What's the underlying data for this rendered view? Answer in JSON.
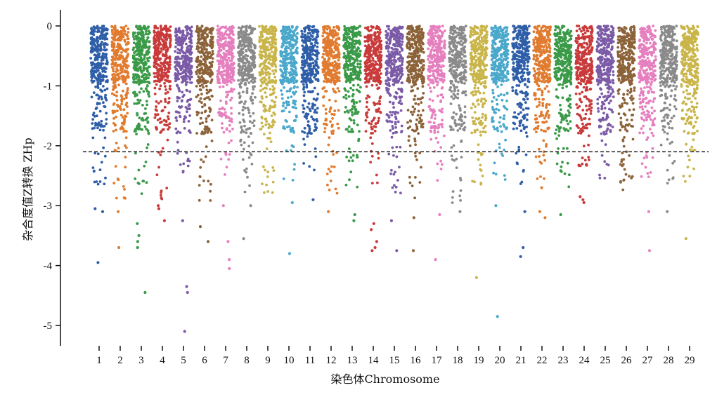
{
  "chart_data": {
    "type": "scatter",
    "xlabel": "染色体Chromosome",
    "ylabel": "杂合度值Z转换 ZHp",
    "x_ticks": [
      "1",
      "2",
      "3",
      "4",
      "5",
      "6",
      "7",
      "8",
      "9",
      "10",
      "11",
      "12",
      "13",
      "14",
      "15",
      "16",
      "17",
      "18",
      "19",
      "20",
      "21",
      "22",
      "23",
      "24",
      "25",
      "26",
      "27",
      "28",
      "29"
    ],
    "y_ticks": [
      0,
      -1,
      -2,
      -3,
      -4,
      -5
    ],
    "ylim": [
      -5.3,
      0.1
    ],
    "threshold": -2.1,
    "grid": false,
    "legend": "none",
    "chromosomes": [
      {
        "name": "1",
        "color": "#2E5EA8",
        "max_depth": -2.7,
        "outliers": [
          -3.05,
          -3.1,
          -3.95
        ]
      },
      {
        "name": "2",
        "color": "#E07B2F",
        "max_depth": -2.9,
        "outliers": [
          -3.1,
          -3.7
        ]
      },
      {
        "name": "3",
        "color": "#3A9A48",
        "max_depth": -2.8,
        "outliers": [
          -3.3,
          -3.5,
          -3.6,
          -3.7,
          -4.45
        ]
      },
      {
        "name": "4",
        "color": "#C93A3A",
        "max_depth": -2.9,
        "outliers": [
          -3.0,
          -3.05,
          -3.25
        ]
      },
      {
        "name": "5",
        "color": "#7B5BA7",
        "max_depth": -2.6,
        "outliers": [
          -3.25,
          -4.35,
          -4.45,
          -5.1
        ]
      },
      {
        "name": "6",
        "color": "#8C6239",
        "max_depth": -2.95,
        "outliers": [
          -3.35,
          -3.6
        ]
      },
      {
        "name": "7",
        "color": "#E57FBE",
        "max_depth": -2.5,
        "outliers": [
          -3.0,
          -3.6,
          -3.9,
          -4.05
        ]
      },
      {
        "name": "8",
        "color": "#8A8A8A",
        "max_depth": -2.8,
        "outliers": [
          -3.0,
          -3.55
        ]
      },
      {
        "name": "9",
        "color": "#C9B54A",
        "max_depth": -2.8,
        "outliers": []
      },
      {
        "name": "10",
        "color": "#4AA8CB",
        "max_depth": -2.6,
        "outliers": [
          -2.95,
          -3.8
        ]
      },
      {
        "name": "11",
        "color": "#2E5EA8",
        "max_depth": -2.5,
        "outliers": [
          -2.9
        ]
      },
      {
        "name": "12",
        "color": "#E07B2F",
        "max_depth": -2.8,
        "outliers": [
          -3.1
        ]
      },
      {
        "name": "13",
        "color": "#3A9A48",
        "max_depth": -2.7,
        "outliers": [
          -3.15,
          -3.25
        ]
      },
      {
        "name": "14",
        "color": "#C93A3A",
        "max_depth": -2.85,
        "outliers": [
          -3.3,
          -3.4,
          -3.6,
          -3.7,
          -3.75
        ]
      },
      {
        "name": "15",
        "color": "#7B5BA7",
        "max_depth": -2.8,
        "outliers": [
          -3.25,
          -3.75
        ]
      },
      {
        "name": "16",
        "color": "#8C6239",
        "max_depth": -2.9,
        "outliers": [
          -3.2,
          -3.75
        ]
      },
      {
        "name": "17",
        "color": "#E57FBE",
        "max_depth": -2.6,
        "outliers": [
          -3.15,
          -3.9
        ]
      },
      {
        "name": "18",
        "color": "#8A8A8A",
        "max_depth": -3.0,
        "outliers": [
          -3.1
        ]
      },
      {
        "name": "19",
        "color": "#C9B54A",
        "max_depth": -2.8,
        "outliers": [
          -4.2
        ]
      },
      {
        "name": "20",
        "color": "#4AA8CB",
        "max_depth": -2.7,
        "outliers": [
          -3.0,
          -4.85
        ]
      },
      {
        "name": "21",
        "color": "#2E5EA8",
        "max_depth": -2.7,
        "outliers": [
          -3.1,
          -3.7,
          -3.85
        ]
      },
      {
        "name": "22",
        "color": "#E07B2F",
        "max_depth": -2.6,
        "outliers": [
          -2.7,
          -3.1,
          -3.2
        ]
      },
      {
        "name": "23",
        "color": "#3A9A48",
        "max_depth": -2.75,
        "outliers": [
          -3.15
        ]
      },
      {
        "name": "24",
        "color": "#C93A3A",
        "max_depth": -2.35,
        "outliers": [
          -2.85,
          -2.9,
          -2.95
        ]
      },
      {
        "name": "25",
        "color": "#7B5BA7",
        "max_depth": -2.6,
        "outliers": []
      },
      {
        "name": "26",
        "color": "#8C6239",
        "max_depth": -2.75,
        "outliers": []
      },
      {
        "name": "27",
        "color": "#E57FBE",
        "max_depth": -2.7,
        "outliers": [
          -3.1,
          -3.75
        ]
      },
      {
        "name": "28",
        "color": "#8A8A8A",
        "max_depth": -2.85,
        "outliers": [
          -3.1
        ]
      },
      {
        "name": "29",
        "color": "#C9B54A",
        "max_depth": -2.6,
        "outliers": [
          -3.55
        ]
      }
    ]
  }
}
